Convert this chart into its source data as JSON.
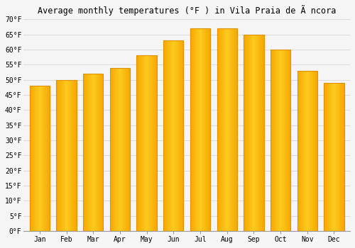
{
  "title": "Average monthly temperatures (°F ) in Vila Praia de Ã ncora",
  "months": [
    "Jan",
    "Feb",
    "Mar",
    "Apr",
    "May",
    "Jun",
    "Jul",
    "Aug",
    "Sep",
    "Oct",
    "Nov",
    "Dec"
  ],
  "temperatures": [
    48,
    50,
    52,
    54,
    58,
    63,
    67,
    67,
    65,
    60,
    53,
    49
  ],
  "bar_color_left": "#F5A800",
  "bar_color_center": "#FFD966",
  "bar_color_right": "#F5A800",
  "background_color": "#f5f5f5",
  "plot_bg_color": "#f5f5f5",
  "grid_color": "#dddddd",
  "ylim": [
    0,
    70
  ],
  "ytick_step": 5,
  "title_fontsize": 8.5,
  "tick_fontsize": 7,
  "font_family": "monospace"
}
